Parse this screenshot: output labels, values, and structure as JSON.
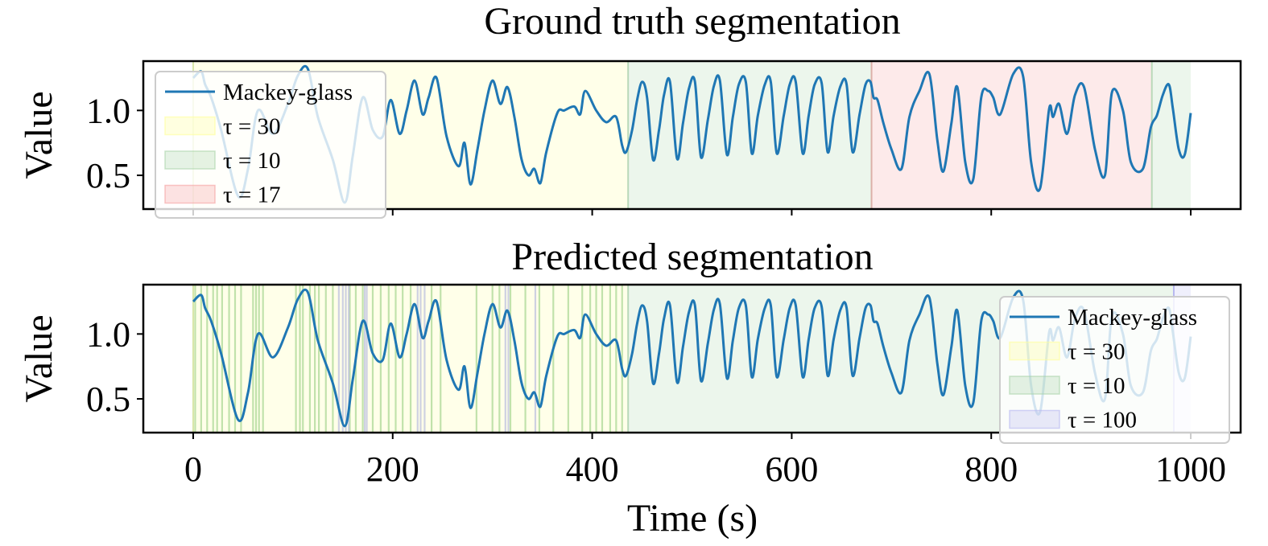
{
  "chart_data": [
    {
      "type": "line",
      "title": "Ground truth segmentation",
      "xlabel": "",
      "ylabel": "Value",
      "xlim": [
        -50,
        1050
      ],
      "ylim": [
        0.24,
        1.38
      ],
      "xticks": [
        0,
        200,
        400,
        600,
        800,
        1000
      ],
      "xtick_labels_shown": false,
      "yticks": [
        0.5,
        1.0
      ],
      "ytick_labels": [
        "0.5",
        "1.0"
      ],
      "legend_loc": "upper left",
      "series": [
        {
          "name": "Mackey-glass",
          "color": "#1f77b4",
          "x": [
            0,
            8,
            12,
            18,
            28,
            45,
            55,
            65,
            80,
            95,
            105,
            115,
            125,
            140,
            152,
            160,
            170,
            180,
            190,
            198,
            207,
            214,
            222,
            230,
            236,
            244,
            254,
            266,
            272,
            278,
            285,
            292,
            300,
            308,
            315,
            322,
            329,
            336,
            342,
            348,
            354,
            365,
            372,
            382,
            388,
            393,
            404,
            414,
            424,
            430,
            434,
            440,
            445,
            450,
            455,
            461,
            467,
            472,
            478,
            485,
            491,
            497,
            503,
            509,
            516,
            522,
            528,
            535,
            541,
            547,
            554,
            560,
            566,
            573,
            579,
            585,
            592,
            598,
            604,
            611,
            617,
            623,
            630,
            636,
            642,
            649,
            655,
            661,
            668,
            674,
            679,
            682,
            686,
            692,
            700,
            710,
            718,
            728,
            738,
            746,
            752,
            760,
            766,
            774,
            782,
            790,
            797,
            802,
            809,
            822,
            832,
            840,
            849,
            858,
            862,
            868,
            876,
            884,
            893,
            904,
            914,
            921,
            932,
            940,
            952,
            960,
            966,
            972,
            978,
            982,
            988,
            994,
            1000
          ],
          "y": [
            1.25,
            1.3,
            1.2,
            1.1,
            0.85,
            0.34,
            0.55,
            1.0,
            0.82,
            1.05,
            1.27,
            1.32,
            0.95,
            0.62,
            0.29,
            0.65,
            1.1,
            0.85,
            0.8,
            1.08,
            0.82,
            1.0,
            1.23,
            0.97,
            1.1,
            1.25,
            0.8,
            0.57,
            0.75,
            0.43,
            0.7,
            1.0,
            1.23,
            1.05,
            1.18,
            0.95,
            0.63,
            0.5,
            0.55,
            0.44,
            0.68,
            0.98,
            1.0,
            1.03,
            0.97,
            1.15,
            1.0,
            0.91,
            0.95,
            0.73,
            0.68,
            0.85,
            1.08,
            1.22,
            1.1,
            0.62,
            0.85,
            1.12,
            1.22,
            0.63,
            0.9,
            1.17,
            1.22,
            0.64,
            0.93,
            1.19,
            1.23,
            0.66,
            0.95,
            1.2,
            1.22,
            0.67,
            0.96,
            1.2,
            1.22,
            0.67,
            0.96,
            1.2,
            1.22,
            0.67,
            0.96,
            1.2,
            1.21,
            0.68,
            0.96,
            1.19,
            1.2,
            0.68,
            0.97,
            1.2,
            1.22,
            1.1,
            1.08,
            0.9,
            0.7,
            0.55,
            0.95,
            1.15,
            1.28,
            0.77,
            0.53,
            0.9,
            1.18,
            0.6,
            0.47,
            1.1,
            1.15,
            1.1,
            0.97,
            1.28,
            1.26,
            0.6,
            0.4,
            1.01,
            0.95,
            1.05,
            0.82,
            1.12,
            1.18,
            0.7,
            0.5,
            1.14,
            1.0,
            0.6,
            0.55,
            0.87,
            0.96,
            1.12,
            1.2,
            1.02,
            0.7,
            0.66,
            0.98
          ]
        }
      ],
      "segments": [
        {
          "label": "τ = 30",
          "start": 0,
          "end": 436,
          "color": "#ffff99",
          "edge": "#d8e6a8"
        },
        {
          "label": "τ = 10",
          "start": 436,
          "end": 680,
          "color": "#a8d4a8",
          "edge": "#b9d9b9"
        },
        {
          "label": "τ = 17",
          "start": 680,
          "end": 961,
          "color": "#f5a0a0",
          "edge": "#dcb0a8"
        },
        {
          "label": "",
          "start": 961,
          "end": 1000,
          "color": "#a8d4a8",
          "edge": "#b9d9b9"
        }
      ],
      "legend": [
        {
          "label": "Mackey-glass",
          "kind": "line",
          "color": "#1f77b4"
        },
        {
          "label": "τ = 30",
          "kind": "patch",
          "color": "#ffff99"
        },
        {
          "label": "τ = 10",
          "kind": "patch",
          "color": "#a8d4a8"
        },
        {
          "label": "τ = 17",
          "kind": "patch",
          "color": "#f5a0a0"
        }
      ]
    },
    {
      "type": "line",
      "title": "Predicted segmentation",
      "xlabel": "Time (s)",
      "ylabel": "Value",
      "xlim": [
        -50,
        1050
      ],
      "ylim": [
        0.24,
        1.38
      ],
      "xticks": [
        0,
        200,
        400,
        600,
        800,
        1000
      ],
      "xtick_labels": [
        "0",
        "200",
        "400",
        "600",
        "800",
        "1000"
      ],
      "yticks": [
        0.5,
        1.0
      ],
      "ytick_labels": [
        "0.5",
        "1.0"
      ],
      "legend_loc": "lower right",
      "series": [
        {
          "name": "Mackey-glass",
          "color": "#1f77b4",
          "same_as_panel": 0
        }
      ],
      "segments": [
        {
          "label": "τ = 30",
          "start": 0,
          "end": 436,
          "color": "#ffff99",
          "edge": "#d8e6a8"
        },
        {
          "label": "τ = 10",
          "start": 436,
          "end": 983,
          "color": "#a8d4a8",
          "edge": "#b9d9b9"
        },
        {
          "label": "τ = 100",
          "start": 983,
          "end": 1000,
          "color": "#b8b8f0",
          "edge": "#b8b8f0"
        }
      ],
      "switch_lines_tau10": [
        2,
        8,
        14,
        20,
        24,
        29,
        36,
        42,
        48,
        60,
        63,
        66,
        70,
        103,
        107,
        110,
        117,
        122,
        126,
        133,
        140,
        157,
        163,
        170,
        180,
        188,
        196,
        203,
        210,
        218,
        239,
        248,
        284,
        300,
        307,
        318,
        333,
        347,
        361,
        376,
        390,
        398,
        404,
        410,
        418,
        424,
        430
      ],
      "switch_lines_tau100": [
        146,
        150,
        153,
        156,
        172,
        174,
        225,
        228,
        232,
        313,
        316,
        343
      ],
      "legend": [
        {
          "label": "Mackey-glass",
          "kind": "line",
          "color": "#1f77b4"
        },
        {
          "label": "τ = 30",
          "kind": "patch",
          "color": "#ffff99"
        },
        {
          "label": "τ = 10",
          "kind": "patch",
          "color": "#a8d4a8"
        },
        {
          "label": "τ = 100",
          "kind": "patch",
          "color": "#b8b8f0"
        }
      ]
    }
  ]
}
